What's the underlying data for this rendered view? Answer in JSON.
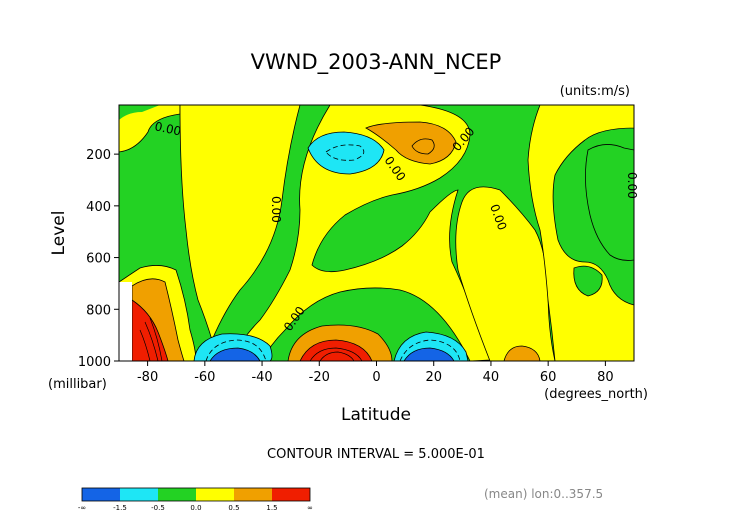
{
  "chart_data": {
    "type": "heatmap",
    "title": "VWND_2003-ANN_NCEP",
    "units": "(units:m/s)",
    "xlabel": "Latitude",
    "xunit": "(degrees_north)",
    "ylabel": "Level",
    "yunit": "(millibar)",
    "xlim": [
      -90,
      90
    ],
    "ylim": [
      1000,
      10
    ],
    "x_ticks": [
      "-80",
      "-60",
      "-40",
      "-20",
      "0",
      "20",
      "40",
      "60",
      "80"
    ],
    "y_ticks": [
      "200",
      "400",
      "600",
      "800",
      "1000"
    ],
    "x_tick_values": [
      -80,
      -60,
      -40,
      -20,
      0,
      20,
      40,
      60,
      80
    ],
    "y_tick_values": [
      200,
      400,
      600,
      800,
      1000
    ],
    "contour_interval_text": "CONTOUR INTERVAL = 5.000E-01",
    "footer_note": "(mean) lon:0..357.5",
    "contour_labels": [
      "0.00",
      "0.00",
      "0.00",
      "0.00",
      "0.00",
      "0.00",
      "0.00"
    ],
    "levels": [
      -1.5,
      -0.5,
      0.0,
      0.5,
      1.5
    ],
    "colorbar": {
      "colors": [
        "#1464e6",
        "#1ee6f5",
        "#23d223",
        "#ffff00",
        "#f0a000",
        "#f01e00"
      ],
      "tick_labels": [
        "-∞",
        "-1.5",
        "-0.5",
        "0.0",
        "0.5",
        "1.5",
        "∞"
      ]
    },
    "regions": [
      {
        "name": "background",
        "sign": "negative",
        "range": "-0.5..0.0"
      },
      {
        "name": "west-yellow-lobe",
        "range": "0.0..0.5"
      },
      {
        "name": "central-yellow-lobe",
        "range": "0.0..0.5"
      },
      {
        "name": "east-yellow-lobe",
        "range": "0.0..0.5"
      },
      {
        "name": "antarctic-orange",
        "range": "0.5..1.5"
      },
      {
        "name": "antarctic-red",
        "range": ">1.5"
      },
      {
        "name": "upper-cyan-cell",
        "range": "-1.5..-0.5"
      },
      {
        "name": "upper-orange-cell",
        "range": "0.5..1.5"
      },
      {
        "name": "surface-cyan-south",
        "range": "-1.5..-0.5"
      },
      {
        "name": "surface-blue-south",
        "range": "<-1.5"
      },
      {
        "name": "surface-orange-subtropic",
        "range": "0.5..1.5"
      },
      {
        "name": "surface-red-subtropic",
        "range": ">1.5"
      },
      {
        "name": "surface-cyan-north",
        "range": "-1.5..-0.5"
      },
      {
        "name": "surface-blue-north",
        "range": "<-1.5"
      },
      {
        "name": "surface-orange-midlat",
        "range": "0.5..1.5"
      }
    ]
  }
}
